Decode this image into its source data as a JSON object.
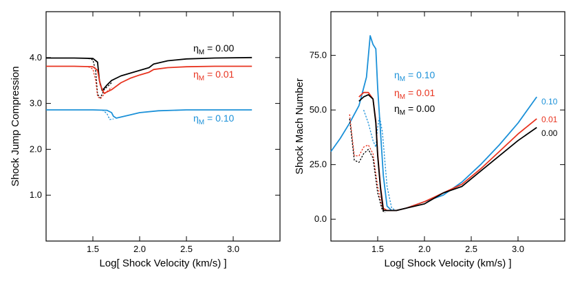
{
  "colors": {
    "black": "#000000",
    "red": "#e8321e",
    "blue": "#1a90d8"
  },
  "chart_data": [
    {
      "type": "line",
      "title": "",
      "xlabel": "Log[ Shock Velocity (km/s) ]",
      "ylabel": "Shock Jump Compression",
      "xlim": [
        1.0,
        3.5
      ],
      "ylim": [
        0.0,
        5.0
      ],
      "xticks": [
        1.5,
        2.0,
        2.5,
        3.0
      ],
      "xticklabels": [
        "1.5",
        "2.0",
        "2.5",
        "3.0"
      ],
      "yticks": [
        1.0,
        2.0,
        3.0,
        4.0
      ],
      "yticklabels": [
        "1.0",
        "2.0",
        "3.0",
        "4.0"
      ],
      "annotations": [
        {
          "prefix": "η",
          "sub": "M",
          "suffix": " = 0.00",
          "color": "#000000"
        },
        {
          "prefix": "η",
          "sub": "M",
          "suffix": " = 0.01",
          "color": "#e8321e"
        },
        {
          "prefix": "η",
          "sub": "M",
          "suffix": " = 0.10",
          "color": "#1a90d8"
        }
      ],
      "series": [
        {
          "name": "ηM = 0.00 (solid)",
          "color": "#000000",
          "dash": false,
          "x": [
            1.0,
            1.3,
            1.5,
            1.55,
            1.57,
            1.6,
            1.65,
            1.7,
            1.8,
            1.9,
            2.0,
            2.1,
            2.15,
            2.3,
            2.5,
            2.8,
            3.2
          ],
          "y": [
            3.99,
            3.99,
            3.98,
            3.9,
            3.5,
            3.28,
            3.4,
            3.5,
            3.6,
            3.66,
            3.72,
            3.78,
            3.86,
            3.93,
            3.97,
            3.99,
            4.0
          ]
        },
        {
          "name": "ηM = 0.00 (dotted)",
          "color": "#000000",
          "dash": true,
          "x": [
            1.45,
            1.5,
            1.53,
            1.55,
            1.58,
            1.62,
            1.7
          ],
          "y": [
            3.98,
            3.95,
            3.7,
            3.2,
            3.12,
            3.3,
            3.45
          ]
        },
        {
          "name": "ηM = 0.01 (solid)",
          "color": "#e8321e",
          "dash": false,
          "x": [
            1.0,
            1.3,
            1.5,
            1.55,
            1.58,
            1.62,
            1.7,
            1.8,
            1.9,
            2.0,
            2.1,
            2.15,
            2.3,
            2.5,
            2.8,
            3.2
          ],
          "y": [
            3.81,
            3.81,
            3.8,
            3.72,
            3.4,
            3.22,
            3.3,
            3.45,
            3.55,
            3.62,
            3.68,
            3.74,
            3.78,
            3.8,
            3.81,
            3.81
          ]
        },
        {
          "name": "ηM = 0.01 (dotted)",
          "color": "#e8321e",
          "dash": true,
          "x": [
            1.45,
            1.5,
            1.53,
            1.55,
            1.58,
            1.62,
            1.7
          ],
          "y": [
            3.8,
            3.75,
            3.5,
            3.15,
            3.1,
            3.2,
            3.35
          ]
        },
        {
          "name": "ηM = 0.10 (solid)",
          "color": "#1a90d8",
          "dash": false,
          "x": [
            1.0,
            1.5,
            1.65,
            1.7,
            1.72,
            1.75,
            1.9,
            2.0,
            2.2,
            2.5,
            3.2
          ],
          "y": [
            2.86,
            2.86,
            2.85,
            2.8,
            2.72,
            2.68,
            2.75,
            2.8,
            2.84,
            2.86,
            2.86
          ]
        },
        {
          "name": "ηM = 0.10 (dotted)",
          "color": "#1a90d8",
          "dash": true,
          "x": [
            1.6,
            1.65,
            1.68,
            1.72
          ],
          "y": [
            2.86,
            2.78,
            2.65,
            2.66
          ]
        }
      ]
    },
    {
      "type": "line",
      "title": "",
      "xlabel": "Log[ Shock Velocity (km/s) ]",
      "ylabel": "Shock Mach Number",
      "xlim": [
        1.0,
        3.5
      ],
      "ylim": [
        -10,
        95
      ],
      "xticks": [
        1.5,
        2.0,
        2.5,
        3.0
      ],
      "xticklabels": [
        "1.5",
        "2.0",
        "2.5",
        "3.0"
      ],
      "yticks": [
        0,
        25,
        50,
        75
      ],
      "yticklabels": [
        "0.0",
        "25.0",
        "50.0",
        "75.0"
      ],
      "annotations": [
        {
          "prefix": "η",
          "sub": "M",
          "suffix": " = 0.10",
          "color": "#1a90d8"
        },
        {
          "prefix": "η",
          "sub": "M",
          "suffix": " = 0.01",
          "color": "#e8321e"
        },
        {
          "prefix": "η",
          "sub": "M",
          "suffix": " = 0.00",
          "color": "#000000"
        }
      ],
      "end_labels": [
        {
          "text": "0.10",
          "color": "#1a90d8"
        },
        {
          "text": "0.01",
          "color": "#e8321e"
        },
        {
          "text": "0.00",
          "color": "#000000"
        }
      ],
      "series": [
        {
          "name": "ηM = 0.10 (solid)",
          "color": "#1a90d8",
          "dash": false,
          "x": [
            1.0,
            1.1,
            1.2,
            1.3,
            1.38,
            1.42,
            1.45,
            1.48,
            1.5,
            1.53,
            1.56,
            1.6,
            1.65,
            1.7,
            1.8,
            2.0,
            2.2,
            2.4,
            2.6,
            2.8,
            3.0,
            3.2
          ],
          "y": [
            31,
            37,
            44,
            52,
            65,
            84,
            80,
            78,
            60,
            40,
            20,
            6,
            4,
            4,
            5,
            8,
            11,
            17,
            25,
            34,
            44,
            56
          ]
        },
        {
          "name": "ηM = 0.10 (dotted)",
          "color": "#1a90d8",
          "dash": true,
          "x": [
            1.35,
            1.4,
            1.45,
            1.48,
            1.5,
            1.52,
            1.55,
            1.6,
            1.65,
            1.7
          ],
          "y": [
            50,
            44,
            36,
            33,
            42,
            47,
            40,
            15,
            5,
            4
          ]
        },
        {
          "name": "ηM = 0.01 (solid)",
          "color": "#e8321e",
          "dash": false,
          "x": [
            1.3,
            1.35,
            1.4,
            1.45,
            1.48,
            1.5,
            1.53,
            1.56,
            1.6,
            1.7,
            1.8,
            2.0,
            2.2,
            2.4,
            2.6,
            2.8,
            3.0,
            3.2
          ],
          "y": [
            56,
            58,
            58,
            55,
            45,
            30,
            15,
            5,
            4,
            4,
            5,
            8,
            12,
            16,
            23,
            31,
            39,
            46
          ]
        },
        {
          "name": "ηM = 0.01 (dotted)",
          "color": "#e8321e",
          "dash": true,
          "x": [
            1.2,
            1.25,
            1.3,
            1.35,
            1.4,
            1.45,
            1.5,
            1.55,
            1.58
          ],
          "y": [
            48,
            29,
            29,
            33,
            34,
            30,
            15,
            5,
            4
          ]
        },
        {
          "name": "ηM = 0.00 (solid)",
          "color": "#000000",
          "dash": false,
          "x": [
            1.3,
            1.35,
            1.4,
            1.45,
            1.48,
            1.5,
            1.53,
            1.56,
            1.6,
            1.7,
            1.8,
            2.0,
            2.2,
            2.4,
            2.6,
            2.8,
            3.0,
            3.2
          ],
          "y": [
            54,
            56,
            57,
            55,
            44,
            29,
            14,
            4,
            4,
            4,
            5,
            7,
            12,
            15,
            22,
            29,
            36,
            42
          ]
        },
        {
          "name": "ηM = 0.00 (dotted)",
          "color": "#000000",
          "dash": true,
          "x": [
            1.2,
            1.25,
            1.3,
            1.35,
            1.4,
            1.45,
            1.5,
            1.55,
            1.58
          ],
          "y": [
            46,
            27,
            26,
            30,
            32,
            28,
            12,
            4,
            3
          ]
        }
      ]
    }
  ]
}
